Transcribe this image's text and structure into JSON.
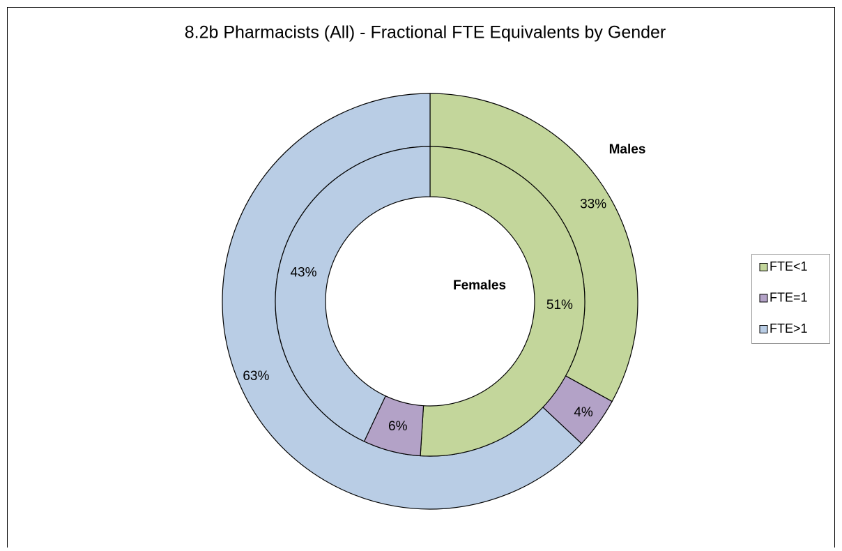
{
  "chart_data": {
    "type": "donut",
    "title": "8.2b Pharmacists (All) - Fractional FTE Equivalents by Gender",
    "categories": [
      "FTE<1",
      "FTE=1",
      "FTE>1"
    ],
    "colors": [
      "#c3d69b",
      "#b3a2c7",
      "#b9cde5"
    ],
    "series": [
      {
        "name": "Males",
        "values": [
          33,
          4,
          63
        ],
        "value_labels": [
          "33%",
          "4%",
          "63%"
        ]
      },
      {
        "name": "Females",
        "values": [
          51,
          6,
          43
        ],
        "value_labels": [
          "51%",
          "6%",
          "43%"
        ]
      }
    ],
    "legend": "right"
  }
}
